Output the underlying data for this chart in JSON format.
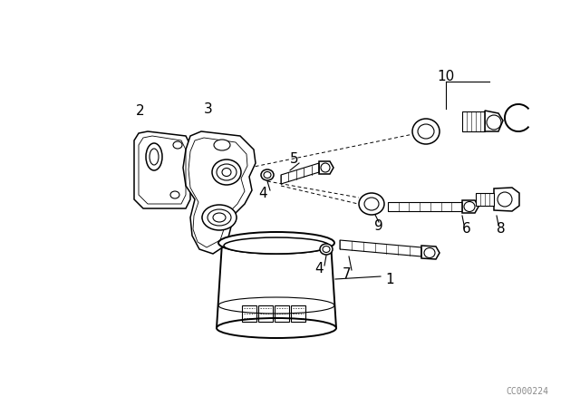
{
  "bg_color": "#ffffff",
  "line_color": "#000000",
  "text_color": "#000000",
  "watermark": "CC000224",
  "fig_width": 6.4,
  "fig_height": 4.48,
  "dpi": 100
}
